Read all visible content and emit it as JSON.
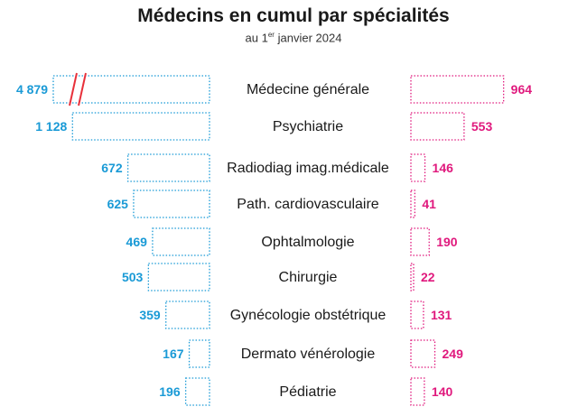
{
  "title": "Médecins en cumul par spécialités",
  "subtitle": {
    "prefix": "au 1",
    "sup": "er",
    "suffix": " janvier 2024"
  },
  "colors": {
    "left": "#1a9ad6",
    "right": "#e0197d",
    "label": "#1a1a1a",
    "break": "#e8303a"
  },
  "chart_data": {
    "type": "bar",
    "title": "Médecins en cumul par spécialités",
    "subtitle": "au 1er janvier 2024",
    "categories": [
      "Médecine générale",
      "Psychiatrie",
      "Radiodiag imag.médicale",
      "Path. cardiovasculaire",
      "Ophtalmologie",
      "Chirurgie",
      "Gynécologie obstétrique",
      "Dermato vénérologie",
      "Pédiatrie"
    ],
    "series": [
      {
        "labels": [
          "4 879",
          "1 128",
          "672",
          "625",
          "469",
          "503",
          "359",
          "167",
          "196"
        ],
        "values": [
          4879,
          1128,
          672,
          625,
          469,
          503,
          359,
          167,
          196
        ]
      },
      {
        "labels": [
          "964",
          "553",
          "146",
          "41",
          "190",
          "22",
          "131",
          "249",
          "140"
        ],
        "values": [
          964,
          553,
          146,
          41,
          190,
          22,
          131,
          249,
          140
        ]
      }
    ],
    "broken_axis_on": "Médecine générale",
    "grid": false
  }
}
